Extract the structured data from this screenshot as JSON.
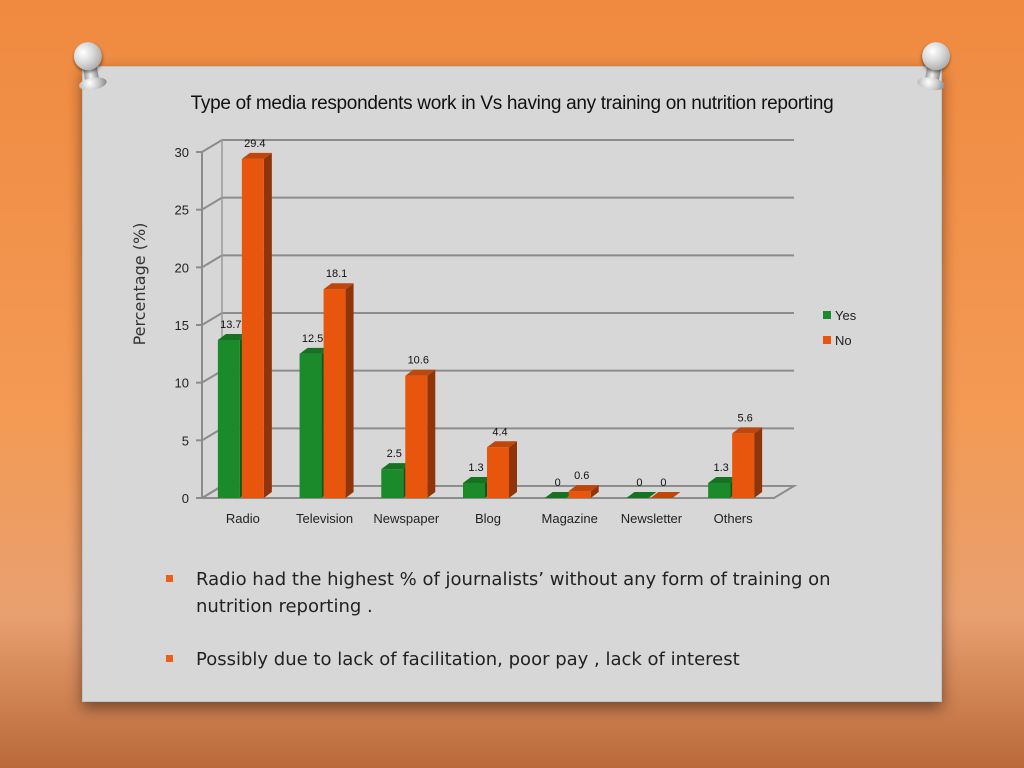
{
  "chart_data": {
    "type": "bar",
    "title": "Type of media respondents work in Vs having any training on nutrition reporting",
    "xlabel": "",
    "ylabel": "Percentage (%)",
    "ylim": [
      0,
      30
    ],
    "yticks": [
      0,
      5,
      10,
      15,
      20,
      25,
      30
    ],
    "categories": [
      "Radio",
      "Television",
      "Newspaper",
      "Blog",
      "Magazine",
      "Newsletter",
      "Others"
    ],
    "series": [
      {
        "name": "Yes",
        "color": "#1b8a2a",
        "values": [
          13.7,
          12.5,
          2.5,
          1.3,
          0,
          0,
          1.3
        ]
      },
      {
        "name": "No",
        "color": "#e8560e",
        "values": [
          29.4,
          18.1,
          10.6,
          4.4,
          0.6,
          0,
          5.6
        ]
      }
    ],
    "grid": true,
    "legend": "right",
    "style": "3d-clustered-column"
  },
  "bullets": [
    "Radio had the highest % of journalists’ without any form of training on nutrition reporting .",
    "Possibly due to lack of facilitation, poor pay , lack of interest"
  ],
  "colors": {
    "bullet_marker": "#e8601c",
    "board": "#d7d7d7"
  }
}
